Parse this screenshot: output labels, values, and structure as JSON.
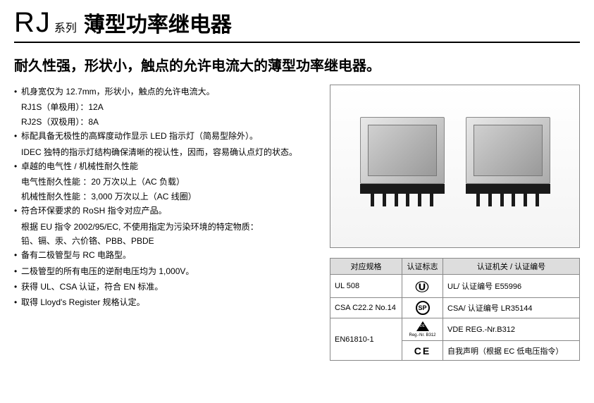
{
  "header": {
    "rj": "RJ",
    "series": "系列",
    "title": "薄型功率继电器"
  },
  "subtitle": "耐久性强，形状小，触点的允许电流大的薄型功率继电器。",
  "bullets": [
    {
      "main": "机身宽仅为 12.7mm，形状小，触点的允许电流大。",
      "subs": [
        "RJ1S（单极用）：12A",
        "RJ2S（双极用）：8A"
      ]
    },
    {
      "main": "标配具备无极性的高辉度动作显示 LED 指示灯（简易型除外）。",
      "subs": [
        "IDEC 独特的指示灯结构确保清晰的视认性，因而，容易确认点灯的状态。"
      ]
    },
    {
      "main": "卓越的电气性 / 机械性耐久性能",
      "subs": [
        "电气性耐久性能 ：20 万次以上（AC 负载）",
        "机械性耐久性能 ：3,000 万次以上（AC 线圈）"
      ]
    },
    {
      "main": "符合环保要求的 RoSH 指令对应产品。",
      "subs": [
        "根据 EU 指令 2002/95/EC, 不使用指定为污染环境的特定物质：",
        "铅、镉、汞、六价铬、PBB、PBDE"
      ]
    },
    {
      "main": "备有二极管型与 RC 电路型。",
      "subs": []
    },
    {
      "main": "二极管型的所有电压的逆耐电压均为 1,000V。",
      "subs": []
    },
    {
      "main": "获得 UL、CSA 认证，符合 EN 标准。",
      "subs": []
    },
    {
      "main": "取得 Lloyd's Register 规格认定。",
      "subs": []
    }
  ],
  "cert_table": {
    "headers": [
      "对应规格",
      "认证标志",
      "认证机关 / 认证编号"
    ],
    "rows": [
      {
        "spec": "UL 508",
        "logo": "ul",
        "auth": "UL/ 认证编号 E55996"
      },
      {
        "spec": "CSA C22.2 No.14",
        "logo": "csa",
        "auth": "CSA/ 认证编号 LR35144"
      },
      {
        "spec": "EN61810-1",
        "logo": "vde",
        "auth": "VDE REG.-Nr.B312",
        "vde_reg": "Reg.-Nr. B312"
      },
      {
        "spec": "",
        "logo": "ce",
        "auth": "自我声明（根据 EC 低电压指令）"
      }
    ]
  },
  "colors": {
    "text": "#000000",
    "border": "#888888",
    "th_bg": "#dddddd",
    "bg": "#ffffff"
  }
}
